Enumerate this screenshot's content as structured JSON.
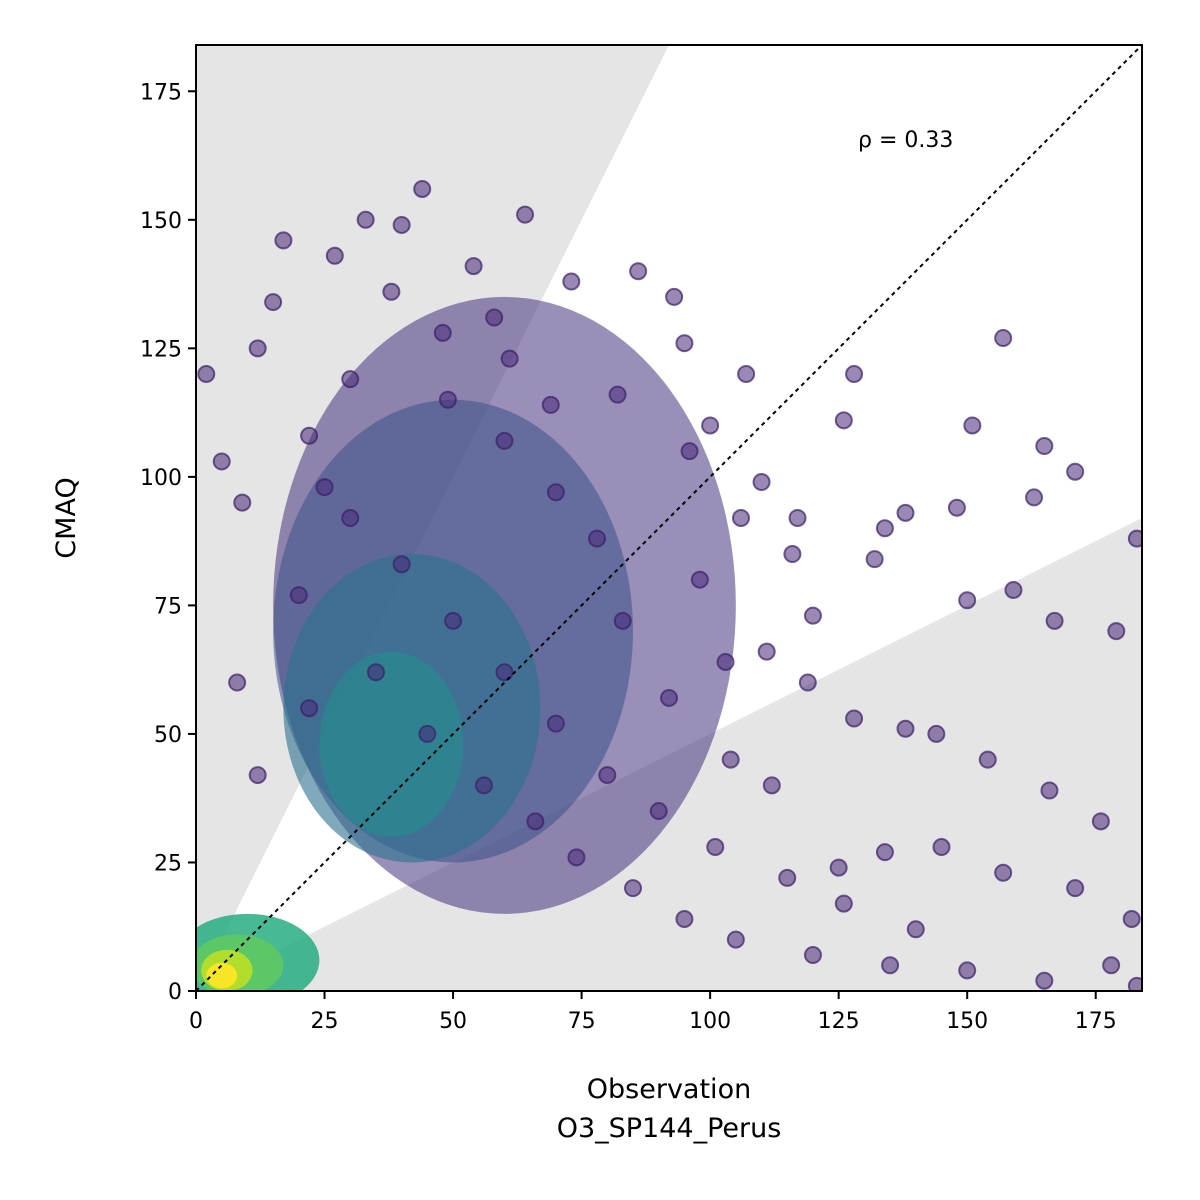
{
  "chart_data": {
    "type": "scatter",
    "xlabel_line1": "Observation",
    "xlabel_line2": "O3_SP144_Perus",
    "ylabel": "CMAQ",
    "xlim": [
      0,
      184
    ],
    "ylim": [
      0,
      184
    ],
    "x_ticks": [
      "0",
      "25",
      "50",
      "75",
      "100",
      "125",
      "150",
      "175"
    ],
    "y_ticks": [
      "0",
      "25",
      "50",
      "75",
      "100",
      "125",
      "150",
      "175"
    ],
    "x_tick_values": [
      0,
      25,
      50,
      75,
      100,
      125,
      150,
      175
    ],
    "y_tick_values": [
      0,
      25,
      50,
      75,
      100,
      125,
      150,
      175
    ],
    "annotation": "ρ = 0.33",
    "reference_line": "1:1 dotted",
    "shaded_regions": [
      "above y = 2x",
      "below y = 0.5x"
    ],
    "colormap": "viridis (point density)",
    "grid": false,
    "legend": "none",
    "sample_points": [
      [
        44,
        156
      ],
      [
        64,
        151
      ],
      [
        33,
        150
      ],
      [
        40,
        149
      ],
      [
        17,
        146
      ],
      [
        54,
        141
      ],
      [
        86,
        140
      ],
      [
        73,
        138
      ],
      [
        93,
        135
      ],
      [
        12,
        125
      ],
      [
        61,
        123
      ],
      [
        95,
        126
      ],
      [
        128,
        120
      ],
      [
        107,
        120
      ],
      [
        126,
        111
      ],
      [
        100,
        110
      ],
      [
        138,
        93
      ],
      [
        148,
        94
      ],
      [
        165,
        106
      ],
      [
        163,
        96
      ],
      [
        171,
        101
      ],
      [
        183,
        88
      ],
      [
        179,
        70
      ],
      [
        167,
        72
      ],
      [
        159,
        78
      ],
      [
        150,
        76
      ],
      [
        132,
        84
      ],
      [
        117,
        92
      ],
      [
        110,
        99
      ],
      [
        120,
        73
      ],
      [
        98,
        80
      ],
      [
        103,
        64
      ],
      [
        111,
        66
      ],
      [
        119,
        60
      ],
      [
        128,
        53
      ],
      [
        138,
        51
      ],
      [
        144,
        50
      ],
      [
        154,
        45
      ],
      [
        166,
        39
      ],
      [
        176,
        33
      ],
      [
        182,
        14
      ],
      [
        171,
        20
      ],
      [
        157,
        23
      ],
      [
        145,
        28
      ],
      [
        134,
        27
      ],
      [
        125,
        24
      ],
      [
        112,
        40
      ],
      [
        104,
        45
      ],
      [
        92,
        57
      ],
      [
        83,
        72
      ],
      [
        78,
        88
      ],
      [
        70,
        97
      ],
      [
        60,
        107
      ],
      [
        49,
        115
      ],
      [
        30,
        119
      ],
      [
        25,
        98
      ],
      [
        20,
        77
      ],
      [
        9,
        95
      ],
      [
        5,
        103
      ],
      [
        2,
        120
      ],
      [
        8,
        60
      ],
      [
        12,
        42
      ],
      [
        22,
        55
      ],
      [
        35,
        62
      ],
      [
        45,
        50
      ],
      [
        56,
        40
      ],
      [
        66,
        33
      ],
      [
        74,
        26
      ],
      [
        85,
        20
      ],
      [
        95,
        14
      ],
      [
        105,
        10
      ],
      [
        120,
        7
      ],
      [
        135,
        5
      ],
      [
        150,
        4
      ],
      [
        165,
        2
      ],
      [
        178,
        5
      ],
      [
        183,
        1
      ],
      [
        140,
        12
      ],
      [
        126,
        17
      ],
      [
        115,
        22
      ],
      [
        101,
        28
      ],
      [
        90,
        35
      ],
      [
        80,
        42
      ],
      [
        70,
        52
      ],
      [
        60,
        62
      ],
      [
        50,
        72
      ],
      [
        40,
        83
      ],
      [
        30,
        92
      ],
      [
        22,
        108
      ],
      [
        15,
        134
      ],
      [
        27,
        143
      ],
      [
        38,
        136
      ],
      [
        48,
        128
      ],
      [
        58,
        131
      ],
      [
        69,
        114
      ],
      [
        82,
        116
      ],
      [
        96,
        105
      ],
      [
        106,
        92
      ],
      [
        116,
        85
      ],
      [
        134,
        90
      ],
      [
        151,
        110
      ],
      [
        157,
        127
      ]
    ]
  }
}
